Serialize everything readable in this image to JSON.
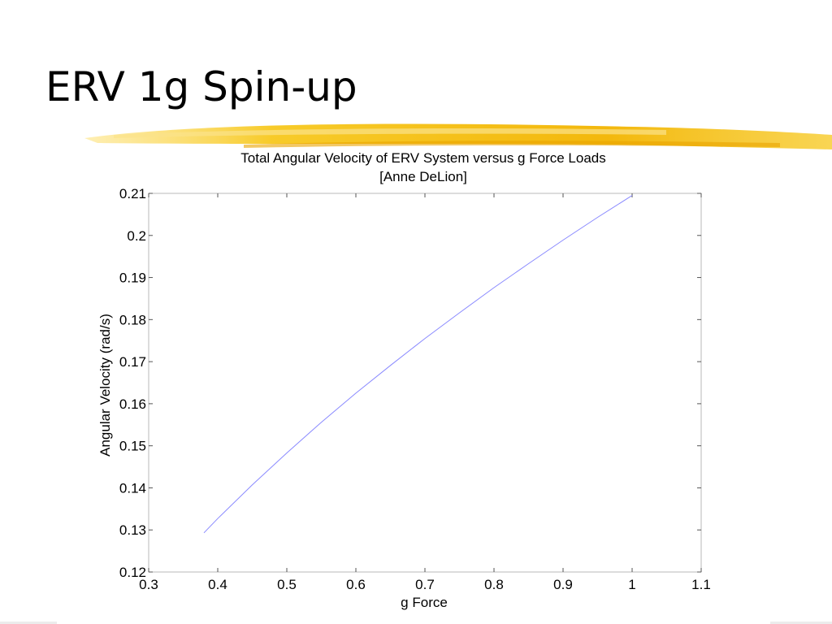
{
  "slide": {
    "title": "ERV 1g Spin-up"
  },
  "colors": {
    "brush_primary": "#f7c81e",
    "brush_secondary": "#f2a900",
    "line": "#8a8aff"
  },
  "chart_data": {
    "type": "line",
    "title": "Total Angular Velocity of ERV System versus g Force Loads",
    "subtitle": "[Anne DeLion]",
    "xlabel": "g Force",
    "ylabel": "Angular Velocity (rad/s)",
    "xlim": [
      0.3,
      1.1
    ],
    "ylim": [
      0.12,
      0.21
    ],
    "xticks": [
      "0.3",
      "0.4",
      "0.5",
      "0.6",
      "0.7",
      "0.8",
      "0.9",
      "1",
      "1.1"
    ],
    "yticks": [
      "0.12",
      "0.13",
      "0.14",
      "0.15",
      "0.16",
      "0.17",
      "0.18",
      "0.19",
      "0.2",
      "0.21"
    ],
    "grid": false,
    "series": [
      {
        "x": [
          0.38,
          0.4,
          0.45,
          0.5,
          0.55,
          0.6,
          0.65,
          0.7,
          0.75,
          0.8,
          0.85,
          0.9,
          0.95,
          1.0
        ],
        "y": [
          0.1293,
          0.1327,
          0.1407,
          0.1483,
          0.1556,
          0.1625,
          0.1691,
          0.1755,
          0.1816,
          0.1876,
          0.1933,
          0.1989,
          0.2043,
          0.2095
        ]
      }
    ]
  }
}
